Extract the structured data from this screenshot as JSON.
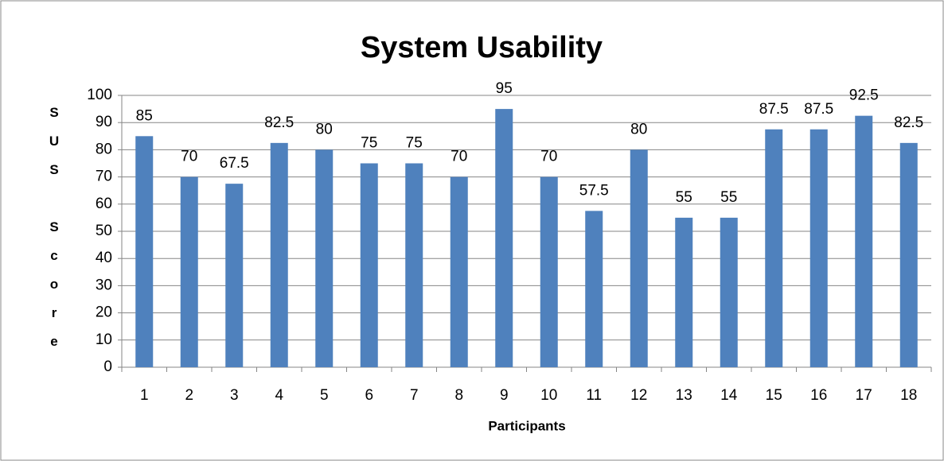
{
  "chart_data": {
    "type": "bar",
    "title": "System Usability",
    "x_label": "Participants",
    "y_label": "SUS Score",
    "categories": [
      "1",
      "2",
      "3",
      "4",
      "5",
      "6",
      "7",
      "8",
      "9",
      "10",
      "11",
      "12",
      "13",
      "14",
      "15",
      "16",
      "17",
      "18"
    ],
    "values": [
      85,
      70,
      67.5,
      82.5,
      80,
      75,
      75,
      70,
      95,
      70,
      57.5,
      80,
      55,
      55,
      87.5,
      87.5,
      92.5,
      82.5
    ],
    "color": "#4f81bd",
    "ylim": [
      0,
      100
    ],
    "yticks": [
      0,
      10,
      20,
      30,
      40,
      50,
      60,
      70,
      80,
      90,
      100
    ],
    "grid": true
  }
}
